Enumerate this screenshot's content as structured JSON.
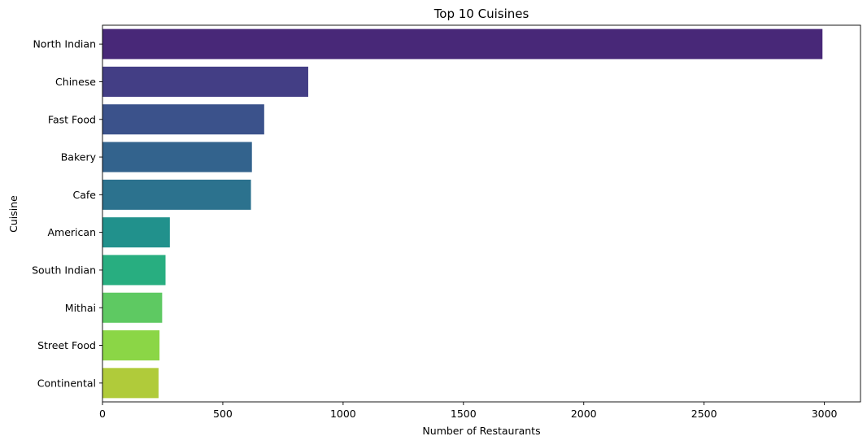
{
  "chart_data": {
    "type": "bar",
    "orientation": "horizontal",
    "title": "Top 10 Cuisines",
    "xlabel": "Number of Restaurants",
    "ylabel": "Cuisine",
    "xlim": [
      0,
      3150
    ],
    "xticks": [
      0,
      500,
      1000,
      1500,
      2000,
      2500,
      3000
    ],
    "grid": false,
    "categories": [
      "North Indian",
      "Chinese",
      "Fast Food",
      "Bakery",
      "Cafe",
      "American",
      "South Indian",
      "Mithai",
      "Street Food",
      "Continental"
    ],
    "values": [
      2992,
      855,
      672,
      621,
      617,
      280,
      262,
      248,
      237,
      233
    ],
    "colors": [
      "#482878",
      "#433e85",
      "#3b528b",
      "#33638d",
      "#2c728e",
      "#21918c",
      "#28ae80",
      "#5ec962",
      "#8bd646",
      "#b0cb3a"
    ]
  }
}
